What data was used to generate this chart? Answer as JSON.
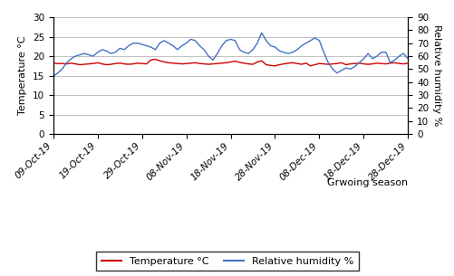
{
  "temp": [
    18.2,
    18.1,
    18.1,
    18.0,
    18.2,
    18.0,
    17.8,
    17.9,
    18.0,
    18.1,
    18.3,
    18.0,
    17.8,
    17.9,
    18.1,
    18.2,
    18.0,
    17.9,
    18.0,
    18.2,
    18.1,
    18.0,
    19.0,
    19.2,
    18.8,
    18.5,
    18.3,
    18.2,
    18.1,
    18.0,
    18.1,
    18.2,
    18.3,
    18.1,
    18.0,
    17.9,
    18.0,
    18.1,
    18.2,
    18.3,
    18.5,
    18.7,
    18.4,
    18.2,
    18.0,
    17.9,
    18.5,
    18.8,
    17.8,
    17.6,
    17.5,
    17.8,
    18.0,
    18.2,
    18.3,
    18.1,
    17.9,
    18.2,
    17.5,
    17.8,
    18.1,
    18.0,
    17.9,
    18.0,
    18.1,
    18.3,
    17.8,
    18.0,
    18.1,
    18.2,
    18.0,
    17.9,
    18.0,
    18.2,
    18.1,
    18.0,
    18.2,
    18.3,
    18.1,
    18.0,
    18.2
  ],
  "humidity": [
    44.5,
    47,
    50,
    55,
    58,
    60,
    61,
    62,
    61,
    60,
    63,
    65,
    64,
    62,
    63,
    66,
    65,
    68,
    70,
    70,
    69,
    68,
    67,
    65,
    70,
    72,
    70,
    68,
    65,
    68,
    70,
    73,
    72,
    68,
    65,
    60,
    57,
    62,
    68,
    72,
    73,
    72,
    65,
    63,
    62,
    65,
    70,
    78,
    72,
    68,
    67,
    64,
    63,
    62,
    63,
    65,
    68,
    70,
    72,
    74,
    72,
    63,
    55,
    50,
    47,
    49,
    51,
    50,
    52,
    55,
    58,
    62,
    58,
    60,
    63,
    63,
    55,
    57,
    60,
    62,
    58
  ],
  "x_labels": [
    "09-Oct-19",
    "19-Oct-19",
    "29-Oct-19",
    "08-Nov-19",
    "18-Nov-19",
    "28-Nov-19",
    "08-Dec-19",
    "18-Dec-19",
    "28-Dec-19"
  ],
  "x_ticks": [
    0,
    10,
    20,
    30,
    40,
    50,
    60,
    70,
    80
  ],
  "ylim_left": [
    0,
    30
  ],
  "ylim_right": [
    0,
    90
  ],
  "yticks_left": [
    0,
    5,
    10,
    15,
    20,
    25,
    30
  ],
  "yticks_right": [
    0,
    10,
    20,
    30,
    40,
    50,
    60,
    70,
    80,
    90
  ],
  "ylabel_left": "Temperature °C",
  "ylabel_right": "Relative humidity %",
  "xlabel": "Grwoing season",
  "temp_color": "#cc0000",
  "humidity_color": "#4472c4",
  "legend_temp": "Temperature °C",
  "legend_humidity": "Relative humidity %",
  "grid_color": "#c0c0c0",
  "background_color": "#ffffff"
}
